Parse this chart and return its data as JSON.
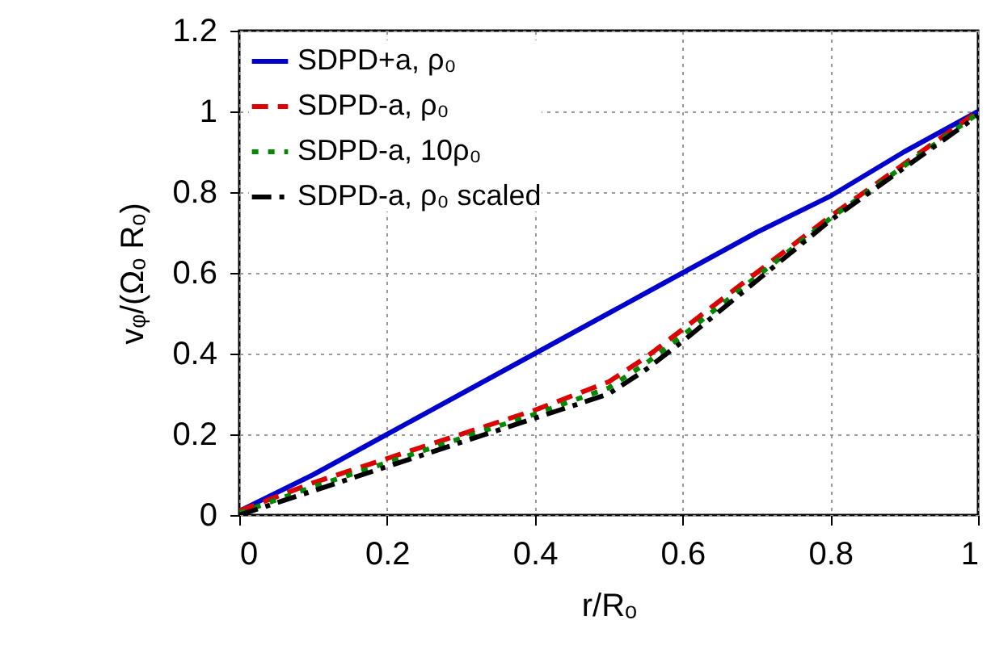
{
  "chart_data": {
    "type": "line",
    "xlabel": "r/Rₒ",
    "ylabel": "vᵩ/(Ωₒ Rₒ)",
    "xlim": [
      0,
      1
    ],
    "ylim": [
      0,
      1.2
    ],
    "xticks": [
      0,
      0.2,
      0.4,
      0.6,
      0.8,
      1
    ],
    "yticks": [
      0,
      0.2,
      0.4,
      0.6,
      0.8,
      1,
      1.2
    ],
    "grid": true,
    "legend": "top left",
    "x": [
      0,
      0.1,
      0.2,
      0.3,
      0.4,
      0.5,
      0.55,
      0.6,
      0.7,
      0.8,
      0.9,
      1
    ],
    "series": [
      {
        "name": "SDPD+a, ρ₀",
        "color": "#0000cc",
        "line_style": "solid",
        "values": [
          0.01,
          0.1,
          0.2,
          0.3,
          0.4,
          0.5,
          0.55,
          0.6,
          0.7,
          0.79,
          0.9,
          1
        ]
      },
      {
        "name": "SDPD-a, ρ₀",
        "color": "#dd0000",
        "line_style": "dashed",
        "values": [
          0.01,
          0.08,
          0.14,
          0.2,
          0.26,
          0.33,
          0.39,
          0.46,
          0.6,
          0.74,
          0.87,
          1
        ]
      },
      {
        "name": "SDPD-a, 10ρ₀",
        "color": "#008800",
        "line_style": "dotted",
        "values": [
          0.005,
          0.07,
          0.13,
          0.19,
          0.25,
          0.315,
          0.375,
          0.445,
          0.59,
          0.735,
          0.865,
          0.995
        ]
      },
      {
        "name": "SDPD-a, ρ₀ scaled",
        "color": "#000000",
        "line_style": "dashdot",
        "values": [
          0,
          0.06,
          0.12,
          0.18,
          0.24,
          0.3,
          0.36,
          0.43,
          0.58,
          0.73,
          0.86,
          0.99
        ]
      }
    ]
  }
}
